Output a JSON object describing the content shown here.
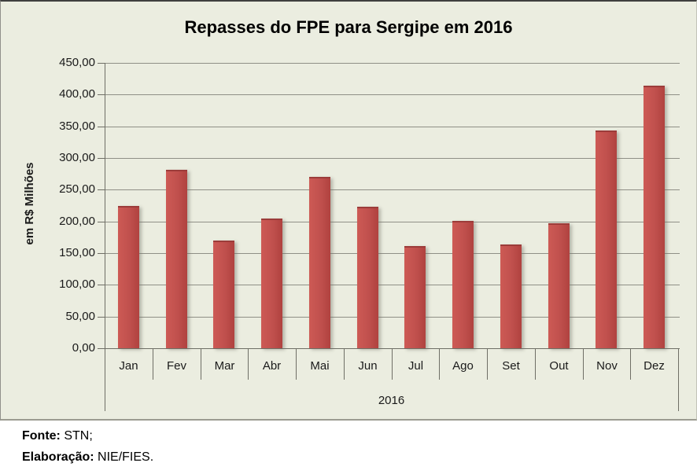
{
  "chart_data": {
    "type": "bar",
    "title": "Repasses do FPE para Sergipe em 2016",
    "ylabel": "em R$ Milhões",
    "xlabel_group": "2016",
    "categories": [
      "Jan",
      "Fev",
      "Mar",
      "Abr",
      "Mai",
      "Jun",
      "Jul",
      "Ago",
      "Set",
      "Out",
      "Nov",
      "Dez"
    ],
    "values": [
      224,
      281,
      170,
      204,
      270,
      223,
      161,
      201,
      164,
      197,
      343,
      414
    ],
    "ylim": [
      0,
      450
    ],
    "ytick_step": 50,
    "ytick_labels": [
      "450,00",
      "400,00",
      "350,00",
      "300,00",
      "250,00",
      "200,00",
      "150,00",
      "100,00",
      "50,00",
      "0,00"
    ],
    "grid": true,
    "legend": "none",
    "colors": {
      "background": "#ebede0",
      "bar_light": "#cd5a55",
      "bar_main": "#c0504d",
      "bar_dark": "#b0423f",
      "bar_top_edge": "#9c3c3a",
      "gridline": "#8f8f86",
      "axis": "#6f6f66",
      "text": "#1a1a1a"
    }
  },
  "footer": {
    "line1_label": "Fonte:",
    "line1_value": " STN;",
    "line2_label": "Elaboração:",
    "line2_value": " NIE/FIES."
  }
}
